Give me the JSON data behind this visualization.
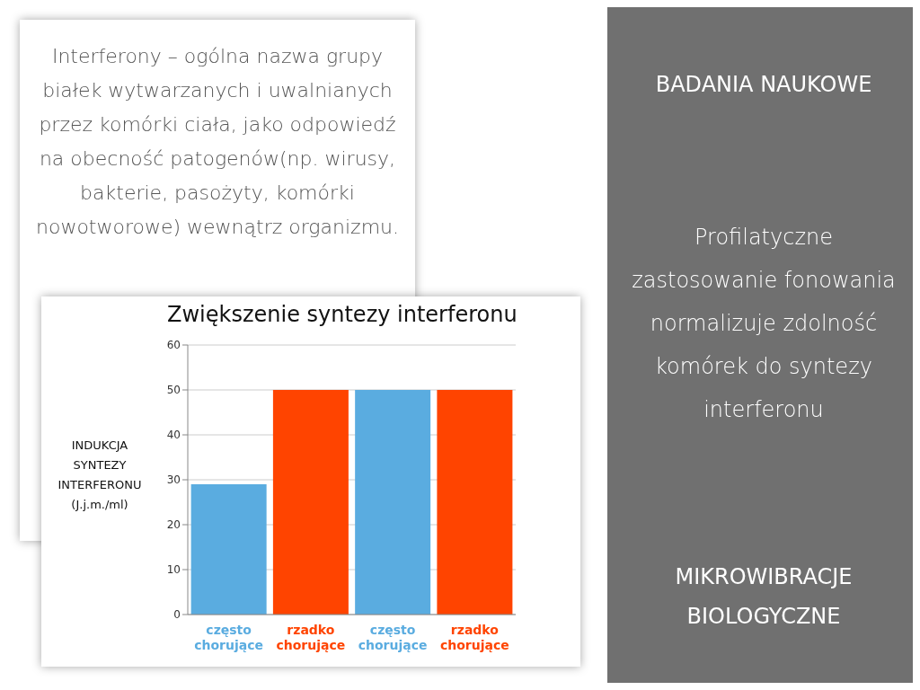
{
  "chart_data": {
    "type": "bar",
    "title": "Zwiększenie syntezy interferonu",
    "ylabel": "INDUKCJA SYNTEZY INTERFERONU (J.j.m./ml)",
    "categories": [
      "często chorujące",
      "rzadko chorujące",
      "często chorujące",
      "rzadko chorujące"
    ],
    "values": [
      29,
      50,
      50,
      50
    ],
    "colors": [
      "#5aace0",
      "#ff4400",
      "#5aace0",
      "#ff4400"
    ],
    "ylim": [
      0,
      60
    ],
    "yticks": [
      0,
      10,
      20,
      30,
      40,
      50,
      60
    ],
    "grid": "y",
    "annotations": [
      "Interferony – ogólna nazwa grupy białek wytwarzanych i uwalnianych przez komórki ciała, jako odpowiedź na obecność patogenów(np. wirusy, bakterie, pasożyty, komórki nowotworowe) wewnątrz organizmu.",
      "BADANIA NAUKOWE",
      "Profilatyczne zastosowanie fonowania normalizuje zdolność komórek do syntezy interferonu",
      "MIKROWIBRACJE BIOLOGYCZNE"
    ]
  }
}
